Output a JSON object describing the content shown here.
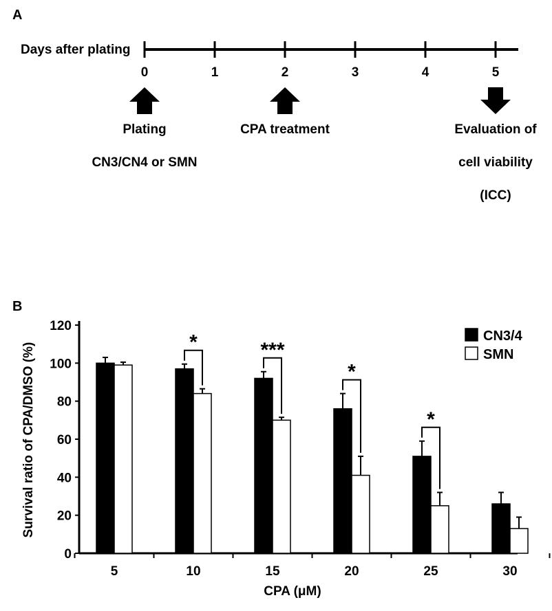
{
  "panel_a": {
    "label": "A",
    "axis_title": "Days after plating",
    "days": [
      "0",
      "1",
      "2",
      "3",
      "4",
      "5"
    ],
    "events": [
      {
        "day": 0,
        "direction": "up",
        "lines": [
          "Plating",
          "CN3/CN4 or SMN"
        ]
      },
      {
        "day": 2,
        "direction": "up",
        "lines": [
          "CPA  treatment"
        ]
      },
      {
        "day": 5,
        "direction": "down",
        "lines": [
          "Evaluation of",
          "cell viability",
          "(ICC)"
        ]
      }
    ]
  },
  "panel_b": {
    "label": "B"
  },
  "chart_data": {
    "type": "bar",
    "title": "",
    "xlabel": "CPA (μM)",
    "ylabel": "Survival ratio of CPA/DMSO (%)",
    "ylim": [
      0,
      120
    ],
    "yticks": [
      0,
      20,
      40,
      60,
      80,
      100,
      120
    ],
    "categories": [
      "5",
      "10",
      "15",
      "20",
      "25",
      "30"
    ],
    "legend_position": "top-right",
    "series": [
      {
        "name": "CN3/4",
        "color": "#000000",
        "values": [
          100,
          97,
          92,
          76,
          51,
          26
        ],
        "errors": [
          3,
          2.5,
          3.5,
          8,
          8,
          6
        ]
      },
      {
        "name": "SMN",
        "color": "#ffffff",
        "values": [
          99,
          84,
          70,
          41,
          25,
          13
        ],
        "errors": [
          1.5,
          2.5,
          1.5,
          10,
          7,
          6
        ]
      }
    ],
    "significance": [
      {
        "category": "10",
        "label": "*"
      },
      {
        "category": "15",
        "label": "***"
      },
      {
        "category": "20",
        "label": "*"
      },
      {
        "category": "25",
        "label": "*"
      }
    ]
  }
}
